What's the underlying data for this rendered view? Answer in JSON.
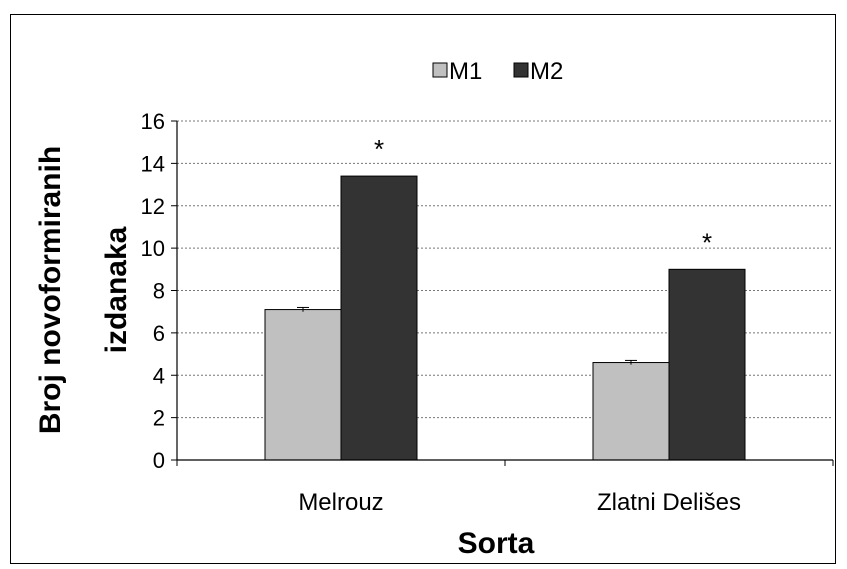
{
  "chart_data": {
    "type": "bar",
    "categories": [
      "Melrouz",
      "Zlatni Delišes"
    ],
    "series": [
      {
        "name": "M1",
        "values": [
          7.1,
          4.6
        ],
        "error": [
          0.1,
          0.1
        ],
        "color": "#c0c0c0"
      },
      {
        "name": "M2",
        "values": [
          13.4,
          9.0
        ],
        "error": [
          0,
          0
        ],
        "color": "#333333"
      }
    ],
    "significance": [
      "*",
      "*"
    ],
    "xlabel": "Sorta",
    "ylabel_lines": [
      "Broj novoformiranih",
      "izdanaka"
    ],
    "ylim": [
      0,
      16
    ],
    "yticks": [
      0,
      2,
      4,
      6,
      8,
      10,
      12,
      14,
      16
    ],
    "grid": true,
    "grid_style": "dotted",
    "legend_position": "top"
  }
}
